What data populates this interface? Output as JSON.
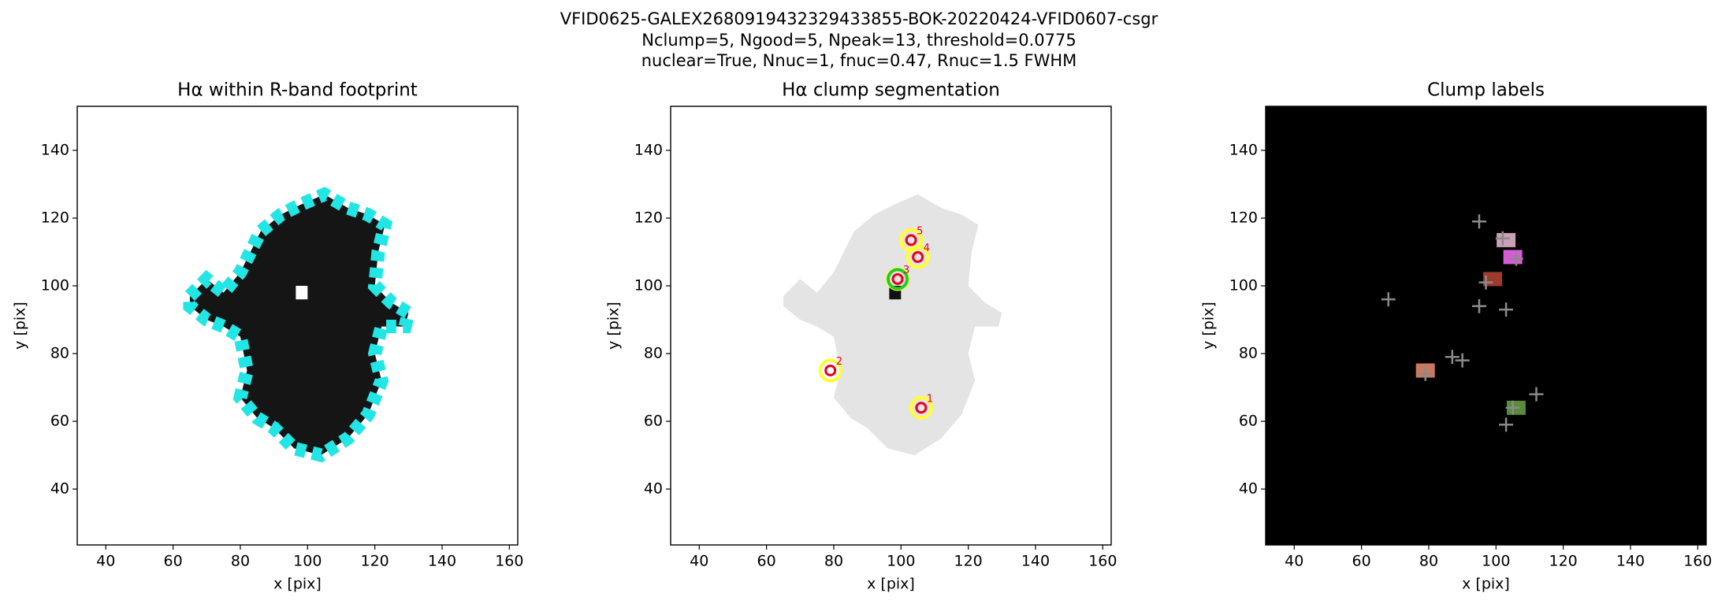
{
  "title_lines": [
    "VFID0625-GALEX2680919432329433855-BOK-20220424-VFID0607-csgr",
    "Nclump=5, Ngood=5, Npeak=13, threshold=0.0775",
    "nuclear=True, Nnuc=1, fnuc=0.47, Rnuc=1.5 FWHM"
  ],
  "chart_data": [
    {
      "type": "image",
      "title": "Hα within R-band footprint",
      "xlabel": "x [pix]",
      "ylabel": "y [pix]",
      "xlim": [
        31.5,
        162.5
      ],
      "ylim": [
        23.5,
        153
      ],
      "xticks": [
        40,
        60,
        80,
        100,
        120,
        140,
        160
      ],
      "yticks": [
        40,
        60,
        80,
        100,
        120,
        140
      ],
      "background": "#ffffff",
      "body_color": "#151515",
      "edge_color": "#22e5e5"
    },
    {
      "type": "segmentation",
      "title": "Hα clump segmentation",
      "xlabel": "x [pix]",
      "ylabel": "y [pix]",
      "xlim": [
        31.5,
        162.5
      ],
      "ylim": [
        23.5,
        153
      ],
      "xticks": [
        40,
        60,
        80,
        100,
        120,
        140,
        160
      ],
      "yticks": [
        40,
        60,
        80,
        100,
        120,
        140
      ],
      "background": "#ffffff",
      "body_color": "#e4e4e4",
      "clumps": {
        "x": [
          106,
          79,
          99,
          105,
          103
        ],
        "y": [
          64,
          75,
          102,
          108.5,
          113.5
        ],
        "labels": [
          "1",
          "2",
          "3",
          "4",
          "5"
        ]
      },
      "marker_color": "#e8001c",
      "contour_color": "#ffff33",
      "nucleus_color": "#22cc22"
    },
    {
      "type": "labels",
      "title": "Clump labels",
      "xlabel": "x [pix]",
      "ylabel": "y [pix]",
      "xlim": [
        31.5,
        162.5
      ],
      "ylim": [
        23.5,
        153
      ],
      "xticks": [
        40,
        60,
        80,
        100,
        120,
        140,
        160
      ],
      "yticks": [
        40,
        60,
        80,
        100,
        120,
        140
      ],
      "background": "#000000",
      "clumps": {
        "x": [
          106,
          79,
          99,
          105,
          103
        ],
        "y": [
          64,
          75,
          102,
          108.5,
          113.5
        ],
        "colors": [
          "#5a8a3c",
          "#c97a5e",
          "#9c3a2c",
          "#d65cd6",
          "#c9a0b8"
        ]
      },
      "peaks": {
        "x": [
          95,
          102,
          106,
          68,
          97,
          95,
          103,
          79,
          87,
          90,
          112,
          103,
          105
        ],
        "y": [
          119,
          114,
          108,
          96,
          101,
          94,
          93,
          74,
          79,
          78,
          68,
          59,
          64
        ]
      },
      "peak_color": "#8a8a8a"
    }
  ]
}
